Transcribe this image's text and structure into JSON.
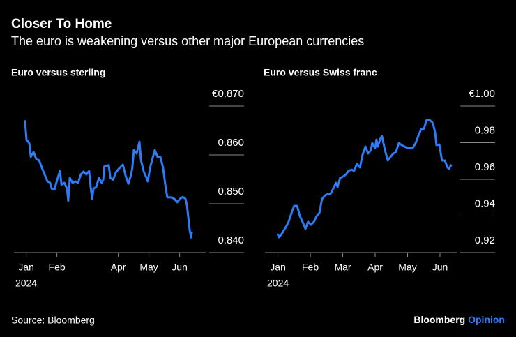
{
  "header": {
    "title": "Closer To Home",
    "subtitle": "The euro is weakening versus other major European currencies"
  },
  "footer": {
    "source": "Source: Bloomberg",
    "brand": [
      "Bloomberg",
      "Opinion"
    ]
  },
  "chart_data": [
    {
      "type": "line",
      "title": "Euro versus sterling",
      "color": "#2d7cf6",
      "x": [
        0.96,
        1.01,
        1.1,
        1.15,
        1.24,
        1.33,
        1.42,
        1.51,
        1.6,
        1.69,
        1.78,
        1.83,
        1.92,
        2.01,
        2.1,
        2.15,
        2.24,
        2.33,
        2.37,
        2.42,
        2.51,
        2.6,
        2.69,
        2.78,
        2.87,
        2.96,
        3.05,
        3.1,
        3.15,
        3.19,
        3.28,
        3.37,
        3.46,
        3.51,
        3.55,
        3.69,
        3.74,
        3.83,
        3.92,
        4.01,
        4.15,
        4.24,
        4.33,
        4.42,
        4.46,
        4.51,
        4.6,
        4.69,
        4.74,
        4.83,
        4.92,
        4.96,
        5.05,
        5.19,
        5.28,
        5.37,
        5.46,
        5.55,
        5.6,
        5.74,
        5.83,
        5.92,
        6.01,
        6.1,
        6.19,
        6.24,
        6.28,
        6.33,
        6.37,
        6.4
      ],
      "values": [
        0.8671,
        0.8631,
        0.8624,
        0.8596,
        0.8606,
        0.8591,
        0.8589,
        0.8574,
        0.856,
        0.8546,
        0.8543,
        0.8531,
        0.8529,
        0.8549,
        0.8567,
        0.8539,
        0.8543,
        0.8531,
        0.8506,
        0.8553,
        0.8543,
        0.8546,
        0.8543,
        0.856,
        0.8566,
        0.856,
        0.8567,
        0.8534,
        0.851,
        0.8531,
        0.8534,
        0.8553,
        0.8543,
        0.8549,
        0.8577,
        0.8579,
        0.8553,
        0.8549,
        0.8564,
        0.8571,
        0.858,
        0.8557,
        0.8541,
        0.856,
        0.8574,
        0.861,
        0.8603,
        0.8627,
        0.8589,
        0.8566,
        0.8553,
        0.8546,
        0.8577,
        0.861,
        0.8596,
        0.8596,
        0.8574,
        0.8531,
        0.8513,
        0.8513,
        0.851,
        0.8503,
        0.851,
        0.8514,
        0.851,
        0.8496,
        0.8474,
        0.8446,
        0.8431,
        0.8443
      ],
      "xlim": [
        0.6,
        8.1
      ],
      "ylim": [
        0.84,
        0.87
      ],
      "xticks": [
        {
          "value": 1,
          "label": "Jan"
        },
        {
          "value": 2,
          "label": "Feb"
        },
        {
          "value": 4,
          "label": "Apr"
        },
        {
          "value": 5,
          "label": "May"
        },
        {
          "value": 6,
          "label": "Jun"
        }
      ],
      "year_label": "2024",
      "yticks": [
        {
          "value": 0.87,
          "label": "€0.870"
        },
        {
          "value": 0.86,
          "label": "0.860"
        },
        {
          "value": 0.85,
          "label": "0.850"
        },
        {
          "value": 0.84,
          "label": "0.840"
        }
      ]
    },
    {
      "type": "line",
      "title": "Euro versus Swiss franc",
      "color": "#2d7cf6",
      "x": [
        0.99,
        1.03,
        1.12,
        1.25,
        1.33,
        1.42,
        1.5,
        1.59,
        1.68,
        1.76,
        1.85,
        1.93,
        2.02,
        2.11,
        2.19,
        2.28,
        2.36,
        2.45,
        2.54,
        2.62,
        2.71,
        2.79,
        2.84,
        2.92,
        3.01,
        3.1,
        3.18,
        3.27,
        3.35,
        3.44,
        3.53,
        3.61,
        3.7,
        3.78,
        3.87,
        3.91,
        4.0,
        4.04,
        4.08,
        4.17,
        4.21,
        4.3,
        4.39,
        4.47,
        4.56,
        4.64,
        4.73,
        4.82,
        4.9,
        4.99,
        5.07,
        5.16,
        5.25,
        5.33,
        5.42,
        5.5,
        5.59,
        5.68,
        5.76,
        5.8,
        5.85,
        5.89,
        5.98,
        6.06,
        6.15,
        6.23,
        6.28,
        6.32,
        6.36
      ],
      "values": [
        0.9303,
        0.9284,
        0.9303,
        0.9341,
        0.9368,
        0.9417,
        0.9455,
        0.9455,
        0.9398,
        0.9368,
        0.933,
        0.9368,
        0.9352,
        0.9368,
        0.9398,
        0.9417,
        0.9493,
        0.9512,
        0.952,
        0.952,
        0.955,
        0.9581,
        0.9558,
        0.9608,
        0.9615,
        0.9627,
        0.9646,
        0.9653,
        0.9646,
        0.9684,
        0.9665,
        0.9733,
        0.9779,
        0.9741,
        0.976,
        0.9798,
        0.9771,
        0.9817,
        0.9779,
        0.9825,
        0.9836,
        0.976,
        0.9703,
        0.9722,
        0.9741,
        0.9749,
        0.9798,
        0.9787,
        0.9779,
        0.9771,
        0.9771,
        0.9771,
        0.9798,
        0.9836,
        0.9874,
        0.9874,
        0.9924,
        0.9924,
        0.9912,
        0.9893,
        0.9855,
        0.9787,
        0.979,
        0.9703,
        0.9703,
        0.9665,
        0.9657,
        0.9672,
        0.968
      ],
      "xlim": [
        0.6,
        7.7
      ],
      "ylim": [
        0.92,
        1.0
      ],
      "xticks": [
        {
          "value": 1,
          "label": "Jan"
        },
        {
          "value": 2,
          "label": "Feb"
        },
        {
          "value": 3,
          "label": "Mar"
        },
        {
          "value": 4,
          "label": "Apr"
        },
        {
          "value": 5,
          "label": "May"
        },
        {
          "value": 6,
          "label": "Jun"
        }
      ],
      "year_label": "2024",
      "yticks": [
        {
          "value": 1.0,
          "label": "€1.00"
        },
        {
          "value": 0.98,
          "label": "0.98"
        },
        {
          "value": 0.96,
          "label": "0.96"
        },
        {
          "value": 0.94,
          "label": "0.94"
        },
        {
          "value": 0.92,
          "label": "0.92"
        }
      ]
    }
  ]
}
